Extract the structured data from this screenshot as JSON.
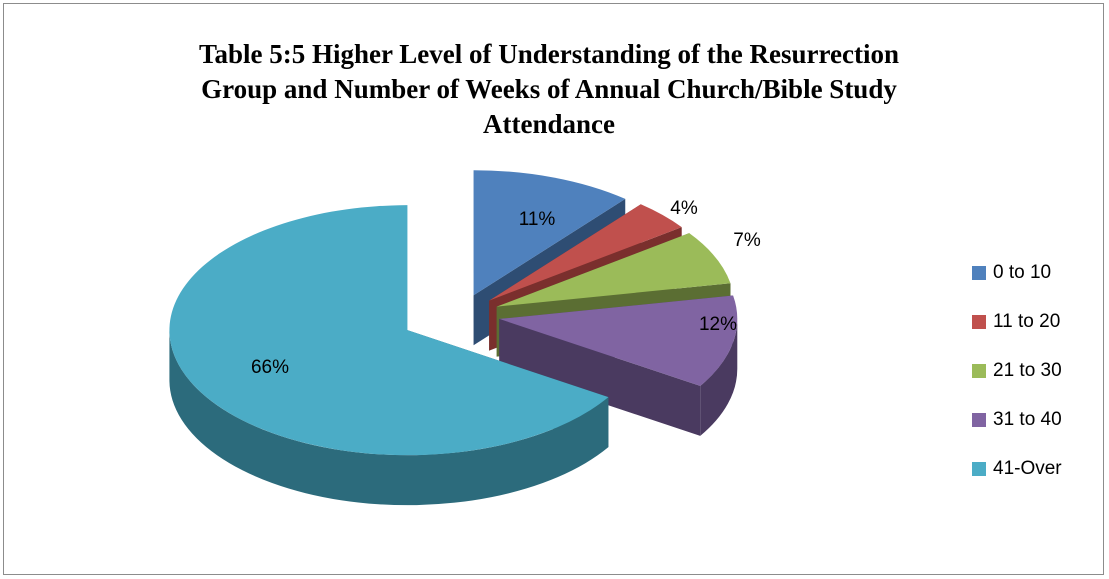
{
  "chart_data": {
    "type": "pie",
    "title_lines": [
      "Table 5:5 Higher Level of Understanding of the Resurrection",
      "Group and Number of Weeks of Annual Church/Bible Study",
      "Attendance"
    ],
    "categories": [
      "0 to 10",
      "11 to 20",
      "21 to 30",
      "31 to 40",
      "41-Over"
    ],
    "values": [
      11,
      4,
      7,
      12,
      66
    ],
    "labels": [
      "11%",
      "4%",
      "7%",
      "12%",
      "66%"
    ],
    "colors": [
      "#4f81bd",
      "#c0504d",
      "#9bbb59",
      "#8064a2",
      "#4bacc6"
    ],
    "side_colors": [
      "#2e4d73",
      "#7a2f2d",
      "#5b6e33",
      "#4a3a60",
      "#2c6b7c"
    ],
    "style": "3d-exploded",
    "legend_position": "right"
  }
}
